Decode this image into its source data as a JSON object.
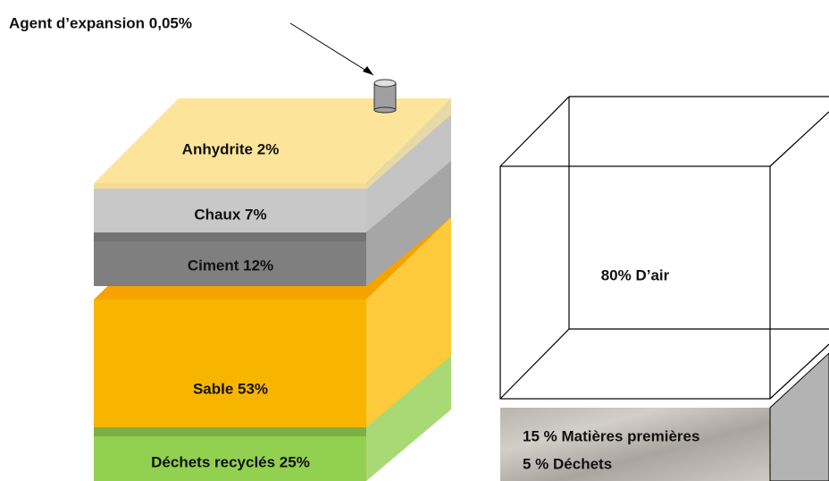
{
  "annotation": "Agent d’expansion 0,05%",
  "layers": [
    "Anhydrite 2%",
    "Chaux 7%",
    "Ciment 12%",
    "Sable 53%",
    "Déchets recyclés 25%"
  ],
  "cube": {
    "air": "80% D’air",
    "base": [
      "15 % Matières premières",
      "5 % Déchets"
    ]
  }
}
